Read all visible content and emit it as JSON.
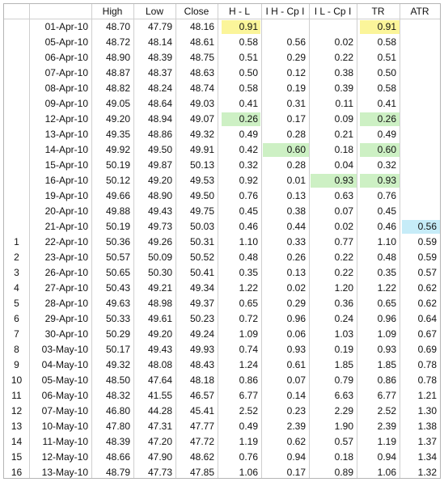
{
  "headers": {
    "idx": "",
    "date": "",
    "high": "High",
    "low": "Low",
    "close": "Close",
    "hl": "H - L",
    "hcp": "I H - Cp I",
    "lcp": "I L - Cp I",
    "tr": "TR",
    "atr": "ATR"
  },
  "highlight_colors": {
    "yellow": "#fbf59a",
    "green": "#cdf0c4",
    "cyan": "#c6ecf8"
  },
  "rows": [
    {
      "idx": "",
      "date": "01-Apr-10",
      "high": "48.70",
      "low": "47.79",
      "close": "48.16",
      "hl": "0.91",
      "hcp": "",
      "lcp": "",
      "tr": "0.91",
      "atr": "",
      "hl_hl": "yellow",
      "tr_hl": "yellow"
    },
    {
      "idx": "",
      "date": "05-Apr-10",
      "high": "48.72",
      "low": "48.14",
      "close": "48.61",
      "hl": "0.58",
      "hcp": "0.56",
      "lcp": "0.02",
      "tr": "0.58",
      "atr": ""
    },
    {
      "idx": "",
      "date": "06-Apr-10",
      "high": "48.90",
      "low": "48.39",
      "close": "48.75",
      "hl": "0.51",
      "hcp": "0.29",
      "lcp": "0.22",
      "tr": "0.51",
      "atr": ""
    },
    {
      "idx": "",
      "date": "07-Apr-10",
      "high": "48.87",
      "low": "48.37",
      "close": "48.63",
      "hl": "0.50",
      "hcp": "0.12",
      "lcp": "0.38",
      "tr": "0.50",
      "atr": ""
    },
    {
      "idx": "",
      "date": "08-Apr-10",
      "high": "48.82",
      "low": "48.24",
      "close": "48.74",
      "hl": "0.58",
      "hcp": "0.19",
      "lcp": "0.39",
      "tr": "0.58",
      "atr": ""
    },
    {
      "idx": "",
      "date": "09-Apr-10",
      "high": "49.05",
      "low": "48.64",
      "close": "49.03",
      "hl": "0.41",
      "hcp": "0.31",
      "lcp": "0.11",
      "tr": "0.41",
      "atr": ""
    },
    {
      "idx": "",
      "date": "12-Apr-10",
      "high": "49.20",
      "low": "48.94",
      "close": "49.07",
      "hl": "0.26",
      "hcp": "0.17",
      "lcp": "0.09",
      "tr": "0.26",
      "atr": "",
      "hl_hl": "green",
      "tr_hl": "green"
    },
    {
      "idx": "",
      "date": "13-Apr-10",
      "high": "49.35",
      "low": "48.86",
      "close": "49.32",
      "hl": "0.49",
      "hcp": "0.28",
      "lcp": "0.21",
      "tr": "0.49",
      "atr": ""
    },
    {
      "idx": "",
      "date": "14-Apr-10",
      "high": "49.92",
      "low": "49.50",
      "close": "49.91",
      "hl": "0.42",
      "hcp": "0.60",
      "lcp": "0.18",
      "tr": "0.60",
      "atr": "",
      "hcp_hl": "green",
      "tr_hl": "green"
    },
    {
      "idx": "",
      "date": "15-Apr-10",
      "high": "50.19",
      "low": "49.87",
      "close": "50.13",
      "hl": "0.32",
      "hcp": "0.28",
      "lcp": "0.04",
      "tr": "0.32",
      "atr": ""
    },
    {
      "idx": "",
      "date": "16-Apr-10",
      "high": "50.12",
      "low": "49.20",
      "close": "49.53",
      "hl": "0.92",
      "hcp": "0.01",
      "lcp": "0.93",
      "tr": "0.93",
      "atr": "",
      "lcp_hl": "green",
      "tr_hl": "green"
    },
    {
      "idx": "",
      "date": "19-Apr-10",
      "high": "49.66",
      "low": "48.90",
      "close": "49.50",
      "hl": "0.76",
      "hcp": "0.13",
      "lcp": "0.63",
      "tr": "0.76",
      "atr": ""
    },
    {
      "idx": "",
      "date": "20-Apr-10",
      "high": "49.88",
      "low": "49.43",
      "close": "49.75",
      "hl": "0.45",
      "hcp": "0.38",
      "lcp": "0.07",
      "tr": "0.45",
      "atr": ""
    },
    {
      "idx": "",
      "date": "21-Apr-10",
      "high": "50.19",
      "low": "49.73",
      "close": "50.03",
      "hl": "0.46",
      "hcp": "0.44",
      "lcp": "0.02",
      "tr": "0.46",
      "atr": "0.56",
      "atr_hl": "cyan"
    },
    {
      "idx": "1",
      "date": "22-Apr-10",
      "high": "50.36",
      "low": "49.26",
      "close": "50.31",
      "hl": "1.10",
      "hcp": "0.33",
      "lcp": "0.77",
      "tr": "1.10",
      "atr": "0.59"
    },
    {
      "idx": "2",
      "date": "23-Apr-10",
      "high": "50.57",
      "low": "50.09",
      "close": "50.52",
      "hl": "0.48",
      "hcp": "0.26",
      "lcp": "0.22",
      "tr": "0.48",
      "atr": "0.59"
    },
    {
      "idx": "3",
      "date": "26-Apr-10",
      "high": "50.65",
      "low": "50.30",
      "close": "50.41",
      "hl": "0.35",
      "hcp": "0.13",
      "lcp": "0.22",
      "tr": "0.35",
      "atr": "0.57"
    },
    {
      "idx": "4",
      "date": "27-Apr-10",
      "high": "50.43",
      "low": "49.21",
      "close": "49.34",
      "hl": "1.22",
      "hcp": "0.02",
      "lcp": "1.20",
      "tr": "1.22",
      "atr": "0.62"
    },
    {
      "idx": "5",
      "date": "28-Apr-10",
      "high": "49.63",
      "low": "48.98",
      "close": "49.37",
      "hl": "0.65",
      "hcp": "0.29",
      "lcp": "0.36",
      "tr": "0.65",
      "atr": "0.62"
    },
    {
      "idx": "6",
      "date": "29-Apr-10",
      "high": "50.33",
      "low": "49.61",
      "close": "50.23",
      "hl": "0.72",
      "hcp": "0.96",
      "lcp": "0.24",
      "tr": "0.96",
      "atr": "0.64"
    },
    {
      "idx": "7",
      "date": "30-Apr-10",
      "high": "50.29",
      "low": "49.20",
      "close": "49.24",
      "hl": "1.09",
      "hcp": "0.06",
      "lcp": "1.03",
      "tr": "1.09",
      "atr": "0.67"
    },
    {
      "idx": "8",
      "date": "03-May-10",
      "high": "50.17",
      "low": "49.43",
      "close": "49.93",
      "hl": "0.74",
      "hcp": "0.93",
      "lcp": "0.19",
      "tr": "0.93",
      "atr": "0.69"
    },
    {
      "idx": "9",
      "date": "04-May-10",
      "high": "49.32",
      "low": "48.08",
      "close": "48.43",
      "hl": "1.24",
      "hcp": "0.61",
      "lcp": "1.85",
      "tr": "1.85",
      "atr": "0.78"
    },
    {
      "idx": "10",
      "date": "05-May-10",
      "high": "48.50",
      "low": "47.64",
      "close": "48.18",
      "hl": "0.86",
      "hcp": "0.07",
      "lcp": "0.79",
      "tr": "0.86",
      "atr": "0.78"
    },
    {
      "idx": "11",
      "date": "06-May-10",
      "high": "48.32",
      "low": "41.55",
      "close": "46.57",
      "hl": "6.77",
      "hcp": "0.14",
      "lcp": "6.63",
      "tr": "6.77",
      "atr": "1.21"
    },
    {
      "idx": "12",
      "date": "07-May-10",
      "high": "46.80",
      "low": "44.28",
      "close": "45.41",
      "hl": "2.52",
      "hcp": "0.23",
      "lcp": "2.29",
      "tr": "2.52",
      "atr": "1.30"
    },
    {
      "idx": "13",
      "date": "10-May-10",
      "high": "47.80",
      "low": "47.31",
      "close": "47.77",
      "hl": "0.49",
      "hcp": "2.39",
      "lcp": "1.90",
      "tr": "2.39",
      "atr": "1.38"
    },
    {
      "idx": "14",
      "date": "11-May-10",
      "high": "48.39",
      "low": "47.20",
      "close": "47.72",
      "hl": "1.19",
      "hcp": "0.62",
      "lcp": "0.57",
      "tr": "1.19",
      "atr": "1.37"
    },
    {
      "idx": "15",
      "date": "12-May-10",
      "high": "48.66",
      "low": "47.90",
      "close": "48.62",
      "hl": "0.76",
      "hcp": "0.94",
      "lcp": "0.18",
      "tr": "0.94",
      "atr": "1.34"
    },
    {
      "idx": "16",
      "date": "13-May-10",
      "high": "48.79",
      "low": "47.73",
      "close": "47.85",
      "hl": "1.06",
      "hcp": "0.17",
      "lcp": "0.89",
      "tr": "1.06",
      "atr": "1.32"
    }
  ]
}
